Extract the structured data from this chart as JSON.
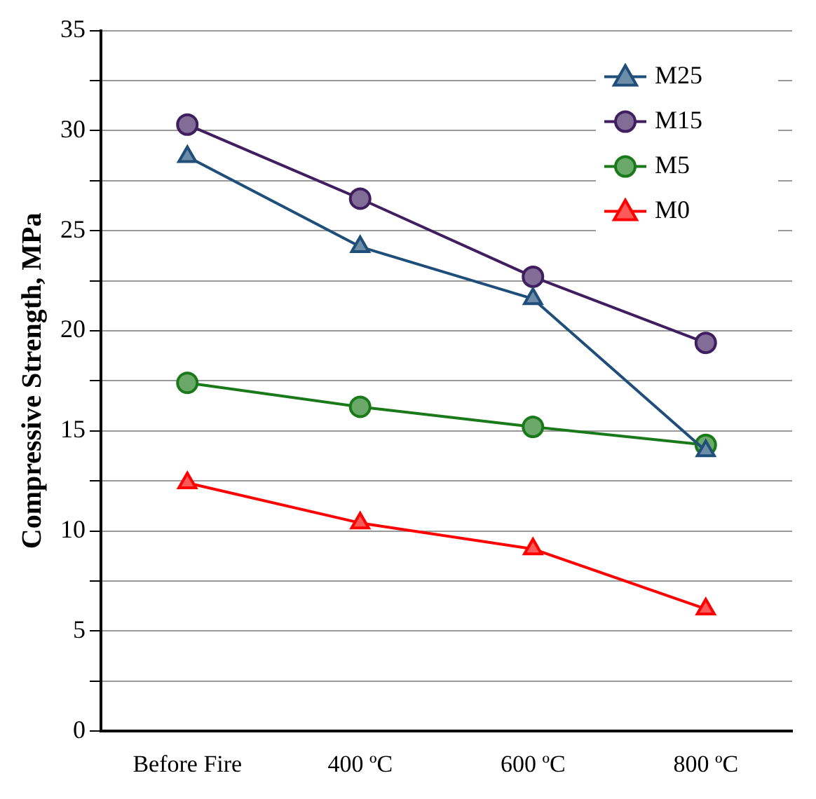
{
  "chart_data": {
    "type": "line",
    "ylabel": "Compressive Strength, MPa",
    "categories": [
      "Before Fire",
      "400 ºC",
      "600 ºC",
      "800 ºC"
    ],
    "series": [
      {
        "name": "M25",
        "color": "#1f4e79",
        "marker": "triangle",
        "values": [
          28.7,
          24.2,
          21.6,
          14.0
        ]
      },
      {
        "name": "M15",
        "color": "#3f1f5f",
        "marker": "circle",
        "values": [
          30.3,
          26.6,
          22.7,
          19.4
        ]
      },
      {
        "name": "M5",
        "color": "#1a7a1a",
        "marker": "circle",
        "values": [
          17.4,
          16.2,
          15.2,
          14.3
        ]
      },
      {
        "name": "M0",
        "color": "#ff0000",
        "marker": "triangle",
        "values": [
          12.4,
          10.4,
          9.1,
          6.1
        ]
      }
    ],
    "ylim": [
      0,
      35
    ],
    "yticks": [
      0,
      {
        "value": 2.5,
        "label": null
      },
      5,
      {
        "value": 7.5,
        "label": null
      },
      10,
      {
        "value": 12.5,
        "label": null
      },
      15,
      {
        "value": 17.5,
        "label": null
      },
      20,
      {
        "value": 22.5,
        "label": null
      },
      25,
      {
        "value": 27.5,
        "label": null
      },
      30,
      {
        "value": 32.5,
        "label": null
      },
      35
    ],
    "grid": "y",
    "legend": "top right",
    "line_style": "solid"
  }
}
